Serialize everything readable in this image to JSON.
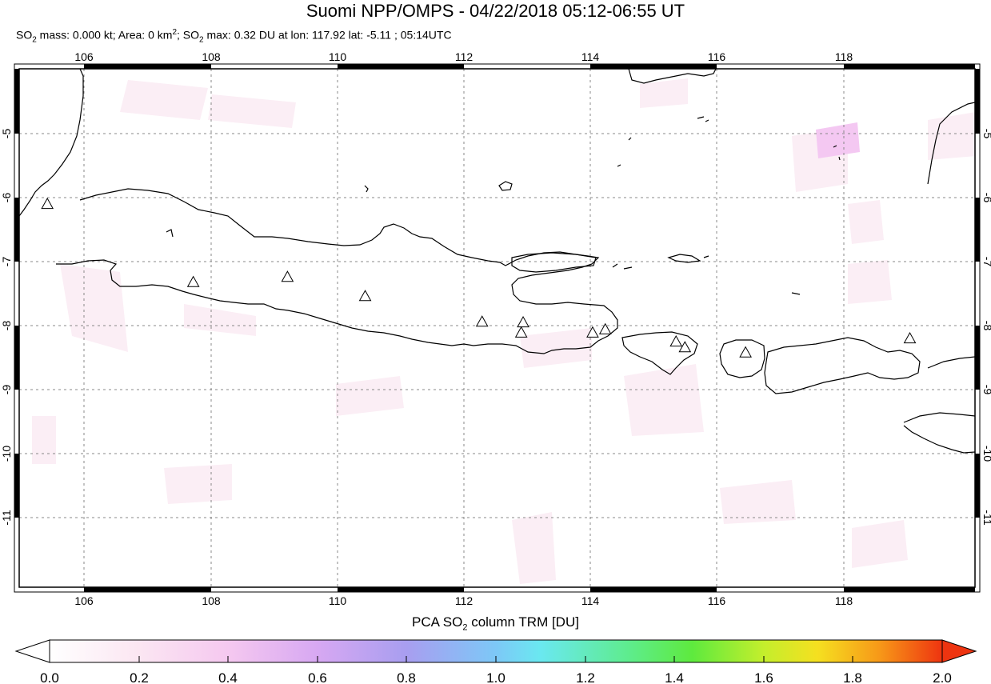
{
  "title": "Suomi NPP/OMPS - 04/22/2018 05:12-06:55 UT",
  "subtitle": {
    "mass": "SO",
    "mass_sub": "2",
    "mass_rest": " mass: 0.000 kt; Area: 0 km",
    "area_sup": "2",
    "max_pre": "; SO",
    "max_sub": "2",
    "max_rest": " max: 0.32 DU at lon: 117.92 lat: -5.11 ; 05:14UTC"
  },
  "map": {
    "lon_range": [
      105.0,
      120.0
    ],
    "lat_range": [
      -12.1,
      -3.9
    ],
    "lon_ticks": [
      "106",
      "108",
      "110",
      "112",
      "114",
      "116",
      "118"
    ],
    "lat_ticks": [
      "-5",
      "-6",
      "-7",
      "-8",
      "-9",
      "-10",
      "-11"
    ],
    "volcanoes": [
      {
        "lon": 105.42,
        "lat": -6.1
      },
      {
        "lon": 107.73,
        "lat": -7.32
      },
      {
        "lon": 109.22,
        "lat": -7.24
      },
      {
        "lon": 110.45,
        "lat": -7.54
      },
      {
        "lon": 112.3,
        "lat": -7.94
      },
      {
        "lon": 112.95,
        "lat": -7.95
      },
      {
        "lon": 112.92,
        "lat": -8.11
      },
      {
        "lon": 114.05,
        "lat": -8.11
      },
      {
        "lon": 114.25,
        "lat": -8.06
      },
      {
        "lon": 115.37,
        "lat": -8.25
      },
      {
        "lon": 115.51,
        "lat": -8.34
      },
      {
        "lon": 116.47,
        "lat": -8.42
      },
      {
        "lon": 119.07,
        "lat": -8.2
      }
    ]
  },
  "colorbar": {
    "title_pre": "PCA SO",
    "title_sub": "2",
    "title_rest": " column TRM [DU]",
    "ticks": [
      "0.0",
      "0.2",
      "0.4",
      "0.6",
      "0.8",
      "1.0",
      "1.2",
      "1.4",
      "1.6",
      "1.8",
      "2.0"
    ],
    "colors": [
      "#ffffff",
      "#fbe6f2",
      "#f6c6ee",
      "#d9a6f3",
      "#a797ee",
      "#86b1f5",
      "#72e6f6",
      "#59ee9e",
      "#5eea3e",
      "#c7ef2c",
      "#f9d320",
      "#f88e17",
      "#ef3a10"
    ]
  }
}
